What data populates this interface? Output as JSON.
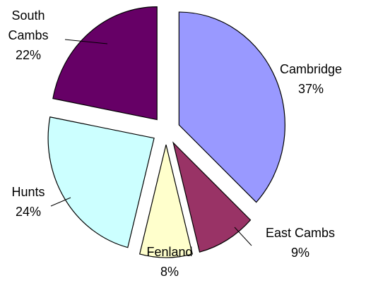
{
  "chart_data": {
    "type": "pie",
    "categories": [
      "Cambridge",
      "East Cambs",
      "Fenland",
      "Hunts",
      "South Cambs"
    ],
    "values": [
      37,
      9,
      8,
      24,
      22
    ],
    "value_labels": [
      "37%",
      "9%",
      "8%",
      "24%",
      "22%"
    ],
    "colors": [
      "#9999ff",
      "#993366",
      "#ffffcc",
      "#ccffff",
      "#660066"
    ]
  }
}
